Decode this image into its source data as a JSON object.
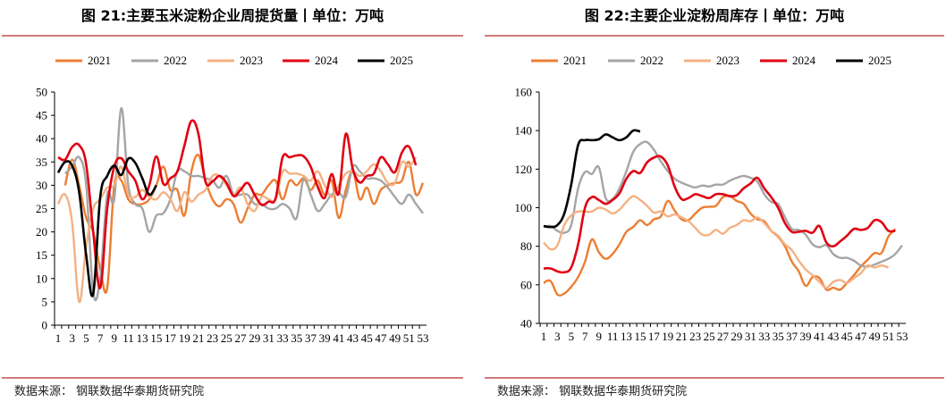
{
  "source_left": "数据来源：  钢联数据华泰期货研究院",
  "source_right": "数据来源：  钢联数据华泰期货研究院",
  "colors": {
    "2021": "#ED7D31",
    "2022": "#A5A5A5",
    "2023": "#F4B183",
    "2024": "#E00012",
    "2025": "#000000",
    "divider": "#C0504D"
  },
  "chart_data": [
    {
      "type": "line",
      "title": "图 21:主要玉米淀粉企业周提货量丨单位：万吨",
      "xlabel": "",
      "ylabel": "",
      "ylim": [
        0,
        50
      ],
      "yticks": [
        0,
        5,
        10,
        15,
        20,
        25,
        30,
        35,
        40,
        45,
        50
      ],
      "xlim": [
        1,
        53
      ],
      "xticks": [
        1,
        3,
        5,
        7,
        9,
        11,
        13,
        15,
        17,
        19,
        21,
        23,
        25,
        27,
        29,
        31,
        33,
        35,
        37,
        39,
        41,
        43,
        45,
        47,
        49,
        51,
        53
      ],
      "legend": "top",
      "series": [
        {
          "name": "2021",
          "start": 2,
          "values": [
            30,
            35.5,
            30,
            23,
            20,
            12,
            8,
            30,
            31,
            27,
            26,
            26,
            27,
            30,
            34,
            29,
            29,
            23.5,
            33,
            36.5,
            31,
            27,
            25.5,
            27,
            26,
            22,
            25,
            28,
            28,
            30,
            31,
            27,
            31,
            30,
            31.5,
            29,
            31,
            28,
            31,
            23,
            29,
            33,
            27,
            29.5,
            26,
            29,
            30,
            30.5,
            31,
            35,
            28,
            30.5
          ]
        },
        {
          "name": "2022",
          "start": 2,
          "values": [
            32.5,
            34,
            36,
            30,
            7,
            10,
            28,
            27,
            46.5,
            30,
            26,
            25,
            20,
            23.5,
            24,
            27,
            33,
            33,
            32,
            32,
            31.5,
            31,
            29.5,
            32,
            28,
            28,
            28,
            26,
            26,
            25,
            25,
            26,
            25,
            23,
            31.5,
            28,
            24.5,
            26,
            28,
            28.5,
            27.5,
            34,
            33,
            31.5,
            31.5,
            31,
            29.5,
            27.5,
            26,
            28,
            26,
            24
          ]
        },
        {
          "name": "2023",
          "start": 1,
          "values": [
            26,
            28,
            22,
            5,
            17,
            25,
            27,
            29.5,
            30,
            34,
            28,
            27.5,
            29,
            27.5,
            27,
            28.5,
            27,
            24.5,
            28.5,
            26.5,
            28,
            29,
            32,
            32,
            30,
            28,
            29.5,
            26,
            24.5,
            27.5,
            27,
            27,
            33,
            32.5,
            32.5,
            32,
            31,
            33,
            30,
            27.5,
            30,
            32.5,
            33,
            32,
            33,
            34.5,
            33,
            30.5,
            30.5,
            35,
            34,
            36
          ]
        },
        {
          "name": "2024",
          "start": 1,
          "values": [
            36,
            35.5,
            38.2,
            38.6,
            34.5,
            20,
            8,
            25,
            34,
            35.8,
            33,
            31,
            27,
            30,
            36.2,
            30.3,
            31.5,
            33,
            38.5,
            43.8,
            41,
            30.8,
            30.8,
            32,
            30.5,
            27.7,
            29,
            30.5,
            28,
            25.8,
            26.5,
            27.2,
            36,
            36,
            36.4,
            36.2,
            34,
            29.7,
            27.3,
            32.4,
            28.2,
            41,
            33.5,
            30.6,
            32,
            32.5,
            36,
            34.5,
            32.8,
            37,
            38.3,
            34.3
          ]
        },
        {
          "name": "2025",
          "start": 1,
          "values": [
            32.7,
            35,
            34.2,
            28.5,
            15,
            6.7,
            27.5,
            32,
            34.2,
            32.2,
            35.7,
            34.8,
            31.5,
            28,
            30
          ]
        }
      ]
    },
    {
      "type": "line",
      "title": "图 22:主要企业淀粉周库存丨单位：万吨",
      "xlabel": "",
      "ylabel": "",
      "ylim": [
        40,
        160
      ],
      "yticks": [
        40,
        60,
        80,
        100,
        120,
        140,
        160
      ],
      "xlim": [
        1,
        53
      ],
      "xticks": [
        1,
        3,
        5,
        7,
        9,
        11,
        13,
        15,
        17,
        19,
        21,
        23,
        25,
        27,
        29,
        31,
        33,
        35,
        37,
        39,
        41,
        43,
        45,
        47,
        49,
        51,
        53
      ],
      "legend": "top",
      "series": [
        {
          "name": "2021",
          "start": 1,
          "values": [
            61,
            62,
            55,
            55.5,
            59,
            64,
            72,
            83.5,
            77,
            73.5,
            76,
            81,
            87.5,
            90,
            93.5,
            91,
            94,
            95.5,
            103.5,
            98.5,
            94,
            93.5,
            97,
            100,
            100.5,
            101,
            105.5,
            106,
            103.5,
            102,
            97,
            94,
            93,
            88,
            85,
            80,
            72,
            67,
            59.5,
            64,
            63.5,
            57.5,
            58.5,
            57.5,
            61,
            65,
            69.5,
            73,
            76.5,
            76.5,
            85,
            89
          ]
        },
        {
          "name": "2022",
          "start": 1,
          "values": [
            90,
            90.5,
            88,
            87,
            91,
            110,
            118.5,
            117.5,
            121,
            105,
            104.5,
            110,
            119,
            129,
            133,
            134,
            130,
            124,
            119,
            115,
            113,
            111.5,
            110.5,
            111.5,
            111,
            112,
            112,
            114,
            115.5,
            116.5,
            115.5,
            113.5,
            107,
            103,
            102,
            95,
            89,
            88.5,
            86,
            81,
            79.5,
            80.5,
            76,
            74,
            74,
            72.5,
            70,
            69.5,
            70.5,
            72,
            73.5,
            76,
            80.5
          ]
        },
        {
          "name": "2023",
          "start": 1,
          "values": [
            82,
            78.5,
            80.5,
            91,
            96,
            98,
            98,
            98,
            100,
            99,
            97,
            99,
            103,
            106,
            104,
            101,
            97.5,
            98,
            95.5,
            96.5,
            95,
            93,
            89.5,
            86,
            86,
            88.5,
            86.5,
            89.5,
            91,
            93.5,
            93,
            95,
            92,
            88,
            85.5,
            81,
            78,
            72.5,
            68,
            65,
            61.5,
            58.5,
            61.5,
            62.5,
            61,
            63.5,
            66,
            70,
            69,
            70,
            69
          ]
        },
        {
          "name": "2024",
          "start": 1,
          "values": [
            68.5,
            68.5,
            67,
            66.5,
            69,
            81,
            100,
            105.5,
            104,
            102,
            104,
            107.5,
            115,
            119,
            118,
            123.5,
            126,
            126.5,
            122,
            111,
            104.5,
            105,
            107,
            106,
            105,
            107,
            107,
            106,
            106.5,
            110,
            112.5,
            115.5,
            110,
            105.5,
            100,
            92,
            87.5,
            87.5,
            88,
            87,
            90.5,
            82,
            80,
            82.5,
            85.5,
            89,
            88.5,
            89.5,
            93.5,
            92.5,
            88,
            88
          ]
        },
        {
          "name": "2025",
          "start": 1,
          "values": [
            90.5,
            90,
            91,
            97,
            112,
            132.5,
            135,
            135,
            135.5,
            138,
            136.5,
            135,
            136.5,
            140,
            139.5
          ]
        }
      ]
    }
  ]
}
